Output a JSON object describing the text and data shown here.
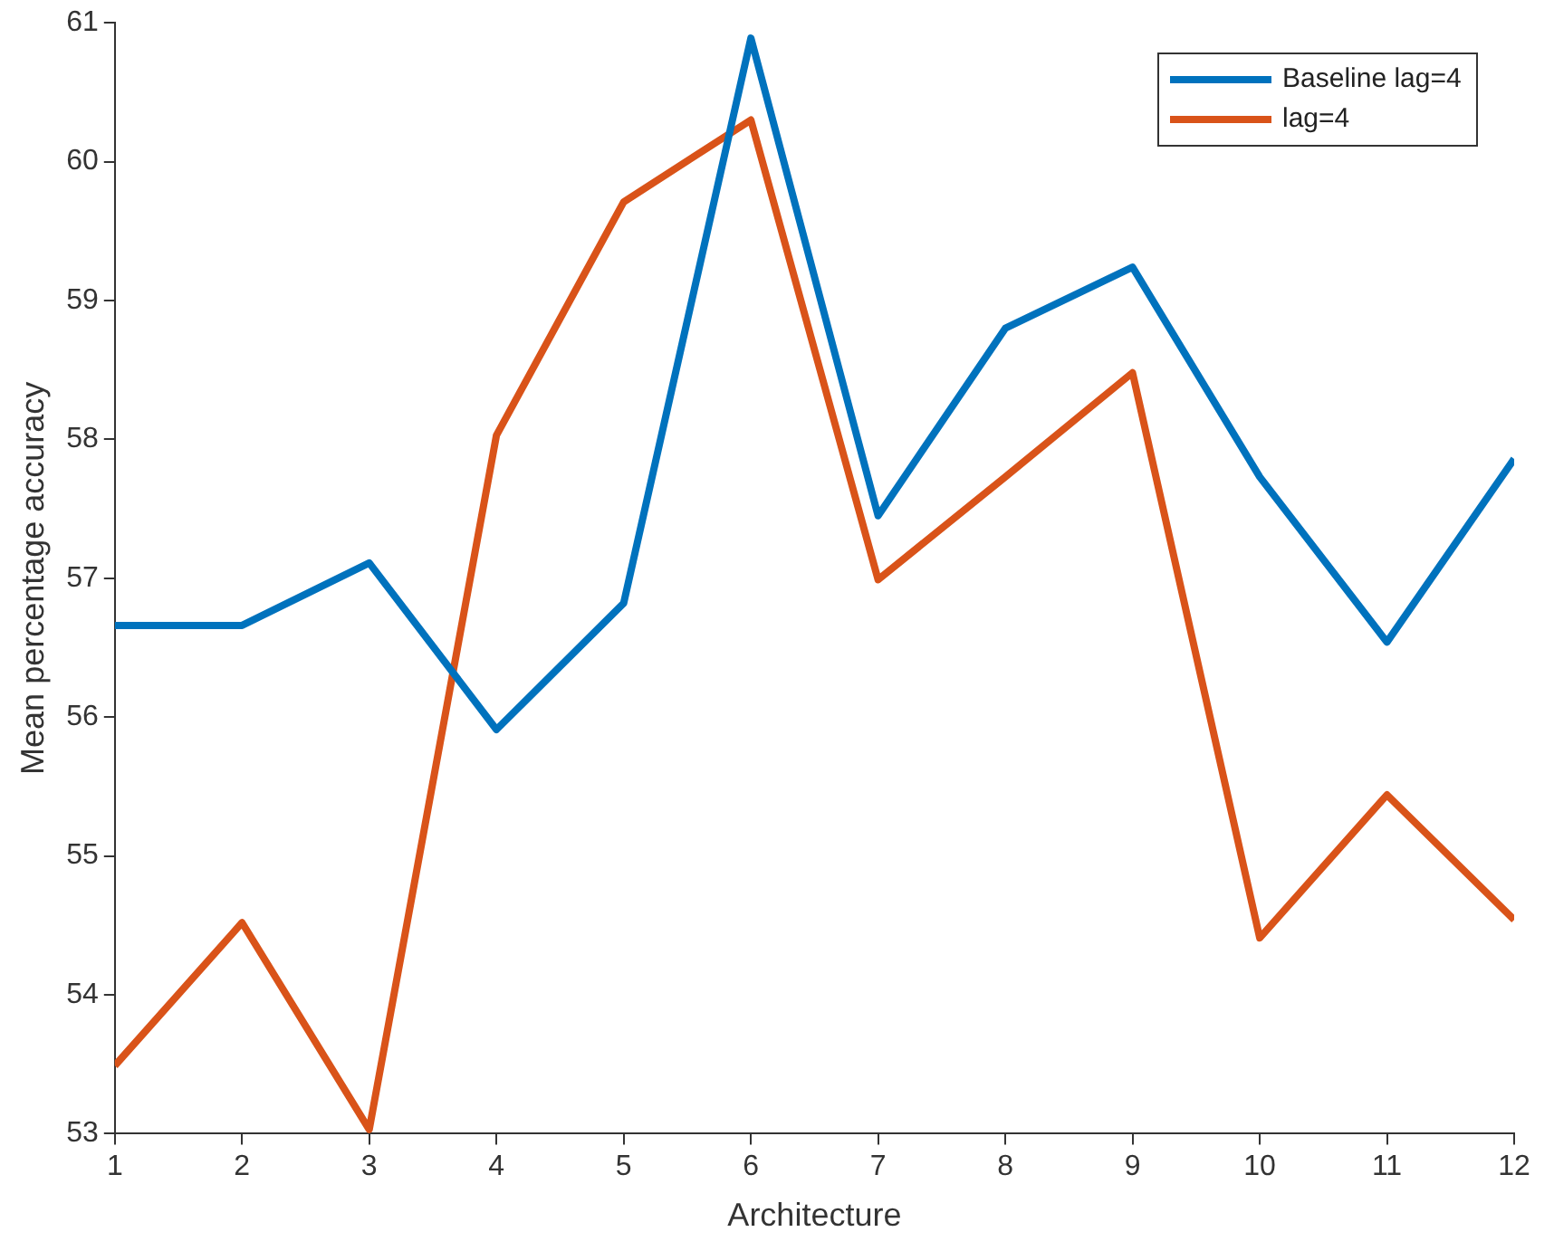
{
  "chart_data": {
    "type": "line",
    "xlabel": "Architecture",
    "ylabel": "Mean percentage accuracy",
    "x": [
      1,
      2,
      3,
      4,
      5,
      6,
      7,
      8,
      9,
      10,
      11,
      12
    ],
    "series": [
      {
        "name": "Baseline lag=4",
        "color": "#0072bd",
        "values": [
          56.66,
          56.66,
          57.11,
          55.91,
          56.82,
          60.89,
          57.45,
          58.8,
          59.24,
          57.73,
          56.54,
          57.86
        ]
      },
      {
        "name": "lag=4",
        "color": "#d95319",
        "values": [
          53.49,
          54.52,
          53.03,
          58.03,
          59.71,
          60.3,
          56.99,
          57.73,
          58.48,
          54.41,
          55.44,
          54.54
        ]
      }
    ],
    "xlim": [
      1,
      12
    ],
    "xticks": [
      1,
      2,
      3,
      4,
      5,
      6,
      7,
      8,
      9,
      10,
      11,
      12
    ],
    "ylim": [
      53,
      61
    ],
    "yticks": [
      53,
      54,
      55,
      56,
      57,
      58,
      59,
      60,
      61
    ],
    "grid": false,
    "legend": "top right",
    "marker": "none",
    "line_style": "solid"
  }
}
